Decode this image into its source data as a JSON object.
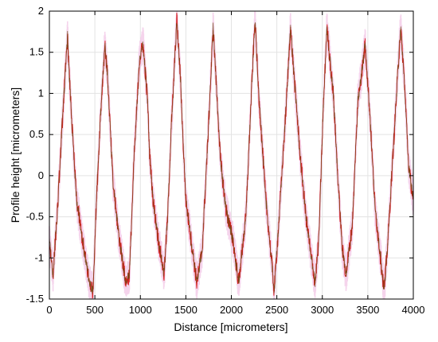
{
  "chart_data": {
    "type": "line",
    "title": "",
    "xlabel": "Distance [micrometers]",
    "ylabel": "Profile height [micrometers]",
    "xlim": [
      0,
      4000
    ],
    "ylim": [
      -1.5,
      2
    ],
    "xticks": [
      0,
      500,
      1000,
      1500,
      2000,
      2500,
      3000,
      3500,
      4000
    ],
    "yticks": [
      -1.5,
      -1,
      -0.5,
      0,
      0.5,
      1,
      1.5,
      2
    ],
    "xtick_labels": [
      "0",
      "500",
      "1000",
      "1500",
      "2000",
      "2500",
      "3000",
      "3500",
      "4000"
    ],
    "ytick_labels": [
      "-1.5",
      "-1",
      "-0.5",
      "0",
      "0.5",
      "1",
      "1.5",
      "2"
    ],
    "grid": true,
    "legend": "none",
    "colors": {
      "series_main": "#d42020",
      "series_overlay": "#6b4a12",
      "envelope": "#f2c6e6"
    },
    "series": [
      {
        "x": [
          0,
          40,
          90,
          150,
          200,
          215,
          260,
          300,
          380,
          440,
          480,
          510,
          560,
          610,
          640,
          700,
          760,
          840,
          880,
          930,
          990,
          1030,
          1080,
          1100,
          1140,
          1200,
          1260,
          1300,
          1340,
          1360,
          1400,
          1440,
          1470,
          1500,
          1560,
          1620,
          1680,
          1740,
          1800,
          1840,
          1880,
          1940,
          2020,
          2080,
          2160,
          2220,
          2260,
          2300,
          2380,
          2440,
          2470,
          2520,
          2600,
          2650,
          2690,
          2760,
          2820,
          2880,
          2920,
          2960,
          3010,
          3050,
          3120,
          3180,
          3220,
          3260,
          3330,
          3390,
          3450,
          3470,
          3520,
          3580,
          3640,
          3680,
          3720,
          3800,
          3860,
          3900,
          3950,
          4000
        ],
        "values": [
          -0.8,
          -1.2,
          -0.4,
          0.8,
          1.7,
          1.3,
          0.4,
          -0.3,
          -0.9,
          -1.3,
          -1.4,
          -0.5,
          0.7,
          1.6,
          1.2,
          -0.1,
          -0.7,
          -1.3,
          -1.2,
          0.2,
          1.4,
          1.6,
          0.9,
          0.3,
          -0.3,
          -0.8,
          -1.2,
          -0.5,
          0.6,
          1.0,
          1.9,
          1.2,
          0.4,
          -0.3,
          -0.8,
          -1.3,
          -0.9,
          0.4,
          1.8,
          1.0,
          0.2,
          -0.4,
          -0.8,
          -1.3,
          -0.5,
          1.0,
          1.9,
          1.0,
          -0.3,
          -1.0,
          -1.4,
          -0.6,
          0.8,
          1.8,
          1.2,
          0.2,
          -0.5,
          -1.0,
          -1.3,
          -0.8,
          0.8,
          1.8,
          1.0,
          -0.2,
          -0.9,
          -1.2,
          -0.6,
          0.9,
          1.4,
          1.6,
          0.8,
          -0.4,
          -1.0,
          -1.4,
          -0.8,
          0.7,
          1.8,
          1.2,
          0.1,
          -0.3
        ]
      }
    ]
  }
}
